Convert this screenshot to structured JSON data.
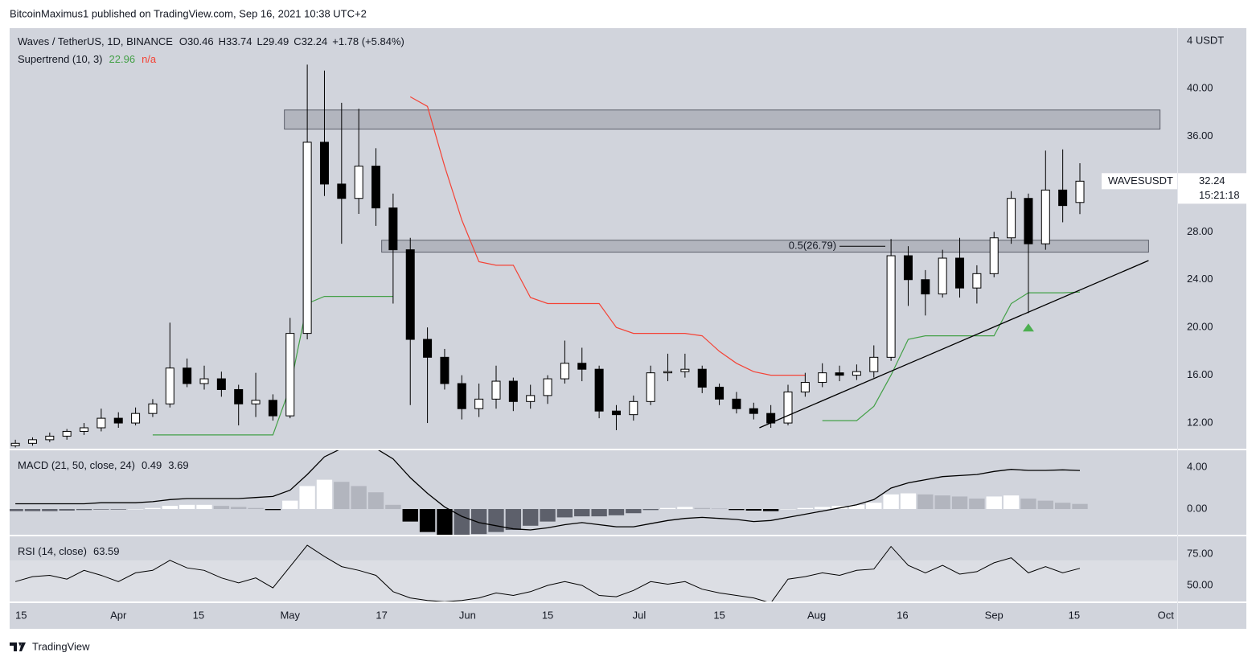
{
  "page_header": "BitcoinMaximus1 published on TradingView.com, Sep 16, 2021 10:38 UTC+2",
  "footer": "TradingView",
  "chart_data": [
    {
      "type": "candlestick",
      "title": "Waves / TetherUS, 1D, BINANCE",
      "ohlc_labels": [
        "O",
        "H",
        "L",
        "C"
      ],
      "change": "+1.78 (+5.84%)",
      "unit": "4 USDT",
      "symbol_label": "WAVESUSDT",
      "countdown": "15:21:18",
      "x": [
        "2021-03-14",
        "2021-03-17",
        "2021-03-20",
        "2021-03-23",
        "2021-03-26",
        "2021-03-29",
        "2021-04-01",
        "2021-04-04",
        "2021-04-07",
        "2021-04-10",
        "2021-04-13",
        "2021-04-16",
        "2021-04-19",
        "2021-04-22",
        "2021-04-25",
        "2021-04-28",
        "2021-05-01",
        "2021-05-04",
        "2021-05-07",
        "2021-05-10",
        "2021-05-13",
        "2021-05-16",
        "2021-05-19",
        "2021-05-22",
        "2021-05-25",
        "2021-05-28",
        "2021-05-31",
        "2021-06-03",
        "2021-06-06",
        "2021-06-09",
        "2021-06-12",
        "2021-06-15",
        "2021-06-18",
        "2021-06-21",
        "2021-06-24",
        "2021-06-27",
        "2021-06-30",
        "2021-07-03",
        "2021-07-06",
        "2021-07-09",
        "2021-07-12",
        "2021-07-15",
        "2021-07-18",
        "2021-07-21",
        "2021-07-24",
        "2021-07-27",
        "2021-07-30",
        "2021-08-02",
        "2021-08-05",
        "2021-08-08",
        "2021-08-11",
        "2021-08-14",
        "2021-08-17",
        "2021-08-20",
        "2021-08-23",
        "2021-08-26",
        "2021-08-29",
        "2021-09-01",
        "2021-09-04",
        "2021-09-07",
        "2021-09-10",
        "2021-09-13",
        "2021-09-16"
      ],
      "open": [
        10.1,
        10.3,
        10.6,
        10.9,
        11.3,
        11.6,
        12.4,
        12.0,
        12.8,
        13.6,
        16.6,
        15.3,
        15.7,
        14.8,
        13.6,
        13.9,
        12.6,
        19.5,
        35.5,
        32.0,
        30.8,
        33.5,
        30.0,
        26.5,
        19.0,
        17.5,
        15.3,
        13.2,
        14.0,
        15.5,
        13.8,
        14.3,
        15.7,
        17.0,
        16.5,
        13.0,
        12.7,
        13.8,
        16.2,
        16.3,
        16.5,
        15.0,
        14.0,
        13.2,
        12.8,
        12.0,
        14.6,
        15.4,
        16.2,
        16.0,
        16.3,
        17.5,
        26.0,
        24.0,
        22.8,
        25.8,
        23.3,
        24.5,
        27.5,
        30.8,
        27.0,
        31.5,
        30.46
      ],
      "high": [
        10.6,
        10.8,
        11.2,
        11.5,
        12.0,
        13.2,
        12.9,
        13.3,
        14.0,
        20.4,
        17.4,
        16.8,
        16.3,
        15.2,
        16.2,
        14.4,
        20.8,
        42.0,
        41.5,
        38.8,
        38.3,
        35.0,
        31.2,
        27.5,
        20.0,
        18.2,
        16.0,
        15.3,
        16.8,
        15.8,
        15.2,
        16.0,
        18.9,
        18.3,
        16.8,
        13.5,
        14.3,
        16.8,
        17.8,
        17.8,
        16.8,
        15.3,
        14.6,
        13.7,
        13.5,
        15.2,
        16.2,
        17.0,
        16.8,
        16.9,
        18.5,
        27.4,
        26.8,
        24.8,
        26.5,
        27.5,
        25.2,
        28.0,
        31.4,
        31.2,
        34.8,
        34.9,
        33.74
      ],
      "low": [
        9.95,
        10.1,
        10.4,
        10.6,
        11.0,
        11.3,
        11.6,
        11.8,
        12.5,
        13.3,
        15.0,
        14.8,
        14.2,
        11.8,
        12.5,
        12.2,
        12.4,
        19.0,
        31.0,
        27.0,
        29.5,
        28.5,
        22.0,
        13.5,
        12.0,
        14.8,
        12.3,
        12.5,
        13.2,
        13.0,
        13.2,
        13.6,
        15.3,
        15.5,
        12.4,
        11.4,
        12.2,
        13.5,
        15.5,
        15.8,
        14.5,
        13.5,
        12.8,
        12.3,
        11.6,
        11.8,
        14.2,
        15.0,
        15.5,
        15.6,
        15.8,
        17.2,
        21.8,
        21.0,
        22.5,
        22.5,
        22.0,
        24.2,
        27.0,
        21.2,
        26.5,
        28.8,
        29.49
      ],
      "close": [
        10.3,
        10.6,
        10.9,
        11.3,
        11.6,
        12.4,
        12.0,
        12.8,
        13.6,
        16.6,
        15.3,
        15.7,
        14.8,
        13.6,
        13.9,
        12.6,
        19.5,
        35.5,
        32.0,
        30.8,
        33.5,
        30.0,
        26.5,
        19.0,
        17.5,
        15.3,
        13.2,
        14.0,
        15.5,
        13.8,
        14.3,
        15.7,
        17.0,
        16.5,
        13.0,
        12.7,
        13.8,
        16.2,
        16.3,
        16.5,
        15.0,
        14.0,
        13.2,
        12.8,
        12.0,
        14.6,
        15.4,
        16.2,
        16.0,
        16.3,
        17.5,
        26.0,
        24.0,
        22.8,
        25.8,
        23.3,
        24.5,
        27.5,
        30.8,
        27.0,
        31.5,
        30.2,
        32.24
      ],
      "up_color": "#ffffff",
      "down_color": "#000000",
      "series": [
        {
          "name": "Supertrend (10, 3)",
          "color": "#43a047",
          "values": [
            null,
            null,
            null,
            null,
            null,
            null,
            null,
            null,
            11.0,
            11.0,
            11.0,
            11.0,
            11.0,
            11.0,
            11.0,
            11.0,
            15.0,
            22.0,
            22.6,
            22.6,
            22.6,
            22.6,
            22.6,
            null,
            null,
            null,
            null,
            null,
            null,
            null,
            null,
            null,
            null,
            null,
            null,
            null,
            null,
            null,
            null,
            null,
            null,
            null,
            null,
            null,
            null,
            null,
            null,
            12.2,
            12.2,
            12.2,
            13.4,
            16.0,
            19.0,
            19.3,
            19.3,
            19.3,
            19.3,
            19.3,
            22.0,
            22.9,
            22.9,
            22.9,
            22.96
          ]
        },
        {
          "color": "#f44336",
          "value_label": "n/a",
          "values": [
            null,
            null,
            null,
            null,
            null,
            null,
            null,
            null,
            null,
            null,
            null,
            null,
            null,
            null,
            null,
            null,
            null,
            null,
            null,
            null,
            null,
            null,
            null,
            39.3,
            38.5,
            33.5,
            29,
            25.5,
            25.2,
            25.2,
            22.5,
            22,
            22,
            22,
            22,
            20,
            19.5,
            19.5,
            19.5,
            19.5,
            19.3,
            18,
            17,
            16.3,
            16,
            16,
            16,
            null,
            null,
            null,
            null,
            null,
            null,
            null,
            null,
            null,
            null,
            null,
            null,
            null,
            null,
            null,
            null
          ]
        }
      ],
      "zones": [
        {
          "x": [
            "2021-04-30",
            "2021-09-30"
          ],
          "y": [
            36.6,
            38.2
          ]
        },
        {
          "x": [
            "2021-05-17",
            "2021-09-28"
          ],
          "y": [
            26.3,
            27.3
          ]
        }
      ],
      "fib": {
        "label": "0.5(26.79)",
        "value": 26.79,
        "x": [
          "2021-08-05",
          "2021-08-13"
        ]
      },
      "trendline": {
        "x": [
          "2021-07-22",
          "2021-09-28"
        ],
        "y": [
          11.6,
          25.6
        ]
      },
      "signal": {
        "x": "2021-09-07",
        "y": 20.0,
        "color": "#4caf50"
      },
      "xlim": [
        "2021-03-13",
        "2021-10-03"
      ],
      "xticks": [
        {
          "value": "2021-03-15",
          "label": "15"
        },
        {
          "value": "2021-04-01",
          "label": "Apr"
        },
        {
          "value": "2021-04-15",
          "label": "15"
        },
        {
          "value": "2021-05-01",
          "label": "May"
        },
        {
          "value": "2021-05-17",
          "label": "17"
        },
        {
          "value": "2021-06-01",
          "label": "Jun"
        },
        {
          "value": "2021-06-15",
          "label": "15"
        },
        {
          "value": "2021-07-01",
          "label": "Jul"
        },
        {
          "value": "2021-07-15",
          "label": "15"
        },
        {
          "value": "2021-08-01",
          "label": "Aug"
        },
        {
          "value": "2021-08-16",
          "label": "16"
        },
        {
          "value": "2021-09-01",
          "label": "Sep"
        },
        {
          "value": "2021-09-15",
          "label": "15"
        },
        {
          "value": "2021-10-01",
          "label": "Oct"
        }
      ],
      "ylim": [
        9.85,
        45.05
      ],
      "yticks": [
        {
          "value": 12,
          "label": "12.00"
        },
        {
          "value": 16,
          "label": "16.00"
        },
        {
          "value": 20,
          "label": "20.00"
        },
        {
          "value": 24,
          "label": "24.00"
        },
        {
          "value": 28,
          "label": "28.00"
        },
        {
          "value": 32,
          "label": "32.00"
        },
        {
          "value": 36,
          "label": "36.00"
        },
        {
          "value": 40,
          "label": "40.00"
        }
      ]
    },
    {
      "type": "macd",
      "title": "MACD (21, 50, close, 24)",
      "histogram": [
        -0.2,
        -0.2,
        -0.2,
        -0.15,
        -0.1,
        -0.05,
        -0.05,
        0,
        0.1,
        0.3,
        0.4,
        0.4,
        0.3,
        0.2,
        0.1,
        -0.1,
        0.8,
        2.2,
        2.8,
        2.6,
        2.2,
        1.6,
        0.4,
        -1.2,
        -2.2,
        -2.5,
        -2.5,
        -2.4,
        -2.2,
        -2.0,
        -1.6,
        -1.2,
        -0.8,
        -0.7,
        -0.7,
        -0.6,
        -0.4,
        -0.1,
        0.1,
        0.2,
        0.1,
        0.05,
        -0.1,
        -0.15,
        -0.2,
        0,
        0.1,
        0.2,
        0.3,
        0.4,
        0.6,
        1.4,
        1.5,
        1.4,
        1.3,
        1.2,
        1.0,
        1.2,
        1.3,
        1.0,
        0.8,
        0.6,
        0.49
      ],
      "macd": [
        0.5,
        0.5,
        0.5,
        0.5,
        0.5,
        0.6,
        0.6,
        0.6,
        0.7,
        0.9,
        1.0,
        1.0,
        1.0,
        1.0,
        1.1,
        1.2,
        1.8,
        3.3,
        5.0,
        5.8,
        5.9,
        5.8,
        4.8,
        3.0,
        1.5,
        0.2,
        -0.7,
        -1.3,
        -1.6,
        -1.9,
        -2.0,
        -1.8,
        -1.5,
        -1.3,
        -1.5,
        -1.7,
        -1.7,
        -1.4,
        -1.1,
        -0.9,
        -0.8,
        -0.9,
        -1.0,
        -1.2,
        -1.1,
        -0.8,
        -0.5,
        -0.2,
        0.1,
        0.4,
        0.9,
        2.0,
        2.5,
        2.8,
        3.1,
        3.2,
        3.3,
        3.6,
        3.8,
        3.7,
        3.7,
        3.75,
        3.69
      ],
      "line_color": "#000000",
      "histogram_colors": [
        "#ffffff",
        "#b2b5be",
        "#5d606b",
        "#000000"
      ],
      "ylim": [
        -2.46,
        5.62
      ],
      "yticks": [
        {
          "value": 0,
          "label": "0.00"
        },
        {
          "value": 4,
          "label": "4.00"
        }
      ]
    },
    {
      "type": "line",
      "title": "RSI (14, close)",
      "values": [
        53,
        57,
        58,
        55,
        62,
        58,
        53,
        60,
        62,
        70,
        64,
        62,
        56,
        52,
        56,
        48,
        65,
        82,
        73,
        65,
        62,
        58,
        45,
        40,
        38,
        37,
        38,
        40,
        44,
        42,
        45,
        50,
        53,
        50,
        42,
        41,
        46,
        53,
        51,
        53,
        47,
        44,
        42,
        40,
        36,
        55,
        57,
        60,
        58,
        62,
        63,
        81,
        66,
        60,
        66,
        59,
        61,
        68,
        72,
        60,
        65,
        60,
        63.59
      ],
      "color": "#000000",
      "band": [
        30,
        70
      ],
      "band_color": "#dcdee4",
      "ylim": [
        37.2,
        89.1
      ],
      "yticks": [
        {
          "value": 50,
          "label": "50.00"
        },
        {
          "value": 75,
          "label": "75.00"
        }
      ]
    }
  ]
}
